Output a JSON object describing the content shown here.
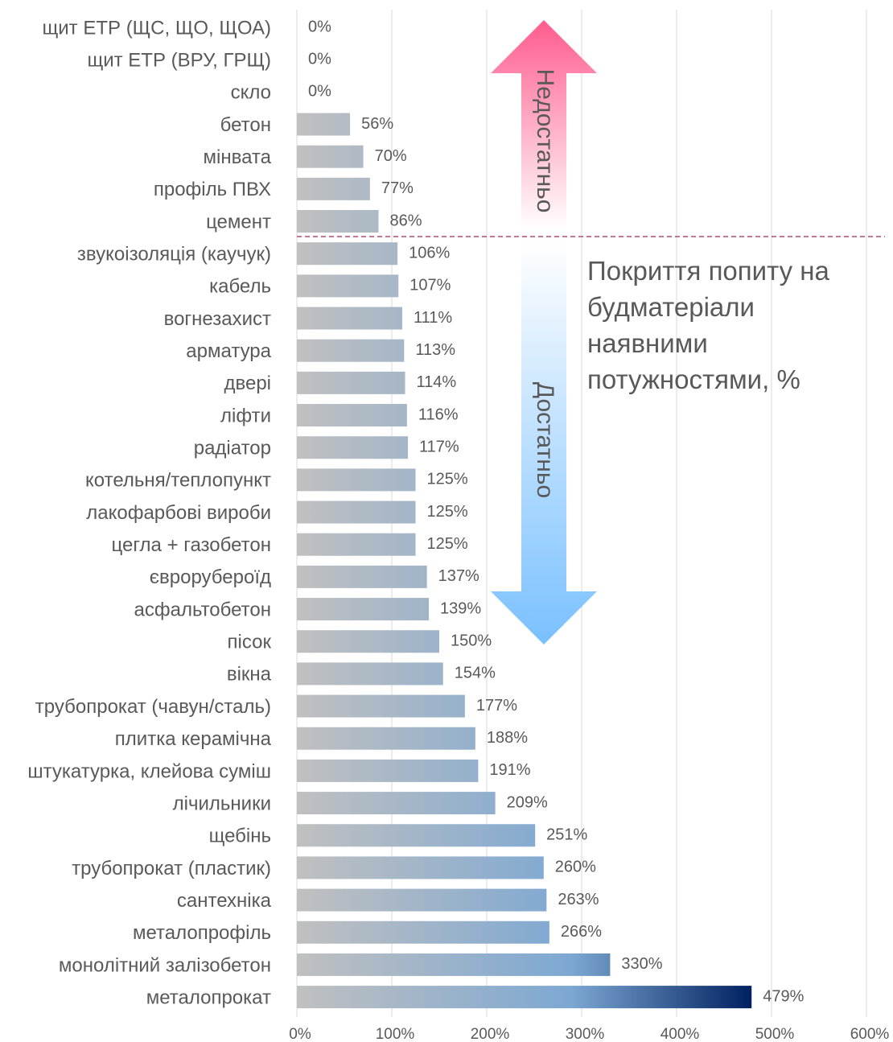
{
  "chart_data": {
    "type": "bar",
    "orientation": "horizontal",
    "title": "Покриття попиту на будматеріали наявними потужностями, %",
    "annotations": [
      "Недостатньо",
      "Достатньо"
    ],
    "categories": [
      "щит ЕТР (ЩС, ЩО, ЩОА)",
      "щит ЕТР (ВРУ, ГРЩ)",
      "скло",
      "бетон",
      "мінвата",
      "профіль ПВХ",
      "цемент",
      "звукоізоляція (каучук)",
      "кабель",
      "вогнезахист",
      "арматура",
      "двері",
      "ліфти",
      "радіатор",
      "котельня/теплопункт",
      "лакофарбові вироби",
      "цегла + газобетон",
      "єврорубероїд",
      "асфальтобетон",
      "пісок",
      "вікна",
      "трубопрокат (чавун/сталь)",
      "плитка керамічна",
      "штукатурка, клейова суміш",
      "лічильники",
      "щебінь",
      "трубопрокат (пластик)",
      "сантехніка",
      "металопрофіль",
      "монолітний залізобетон",
      "металопрокат"
    ],
    "values": [
      0,
      0,
      0,
      56,
      70,
      77,
      86,
      106,
      107,
      111,
      113,
      114,
      116,
      117,
      125,
      125,
      125,
      137,
      139,
      150,
      154,
      177,
      188,
      191,
      209,
      251,
      260,
      263,
      266,
      330,
      479
    ],
    "value_labels": [
      "0%",
      "0%",
      "0%",
      "56%",
      "70%",
      "77%",
      "86%",
      "106%",
      "107%",
      "111%",
      "113%",
      "114%",
      "116%",
      "117%",
      "125%",
      "125%",
      "125%",
      "137%",
      "139%",
      "150%",
      "154%",
      "177%",
      "188%",
      "191%",
      "209%",
      "251%",
      "260%",
      "263%",
      "266%",
      "330%",
      "479%"
    ],
    "xlim": [
      0,
      600
    ],
    "xticks": [
      {
        "value": 0,
        "label": "0%"
      },
      {
        "value": 100,
        "label": "100%"
      },
      {
        "value": 200,
        "label": "200%"
      },
      {
        "value": 300,
        "label": "300%"
      },
      {
        "value": 400,
        "label": "400%"
      },
      {
        "value": 500,
        "label": "500%"
      },
      {
        "value": 600,
        "label": "600%"
      }
    ],
    "grid": true
  }
}
